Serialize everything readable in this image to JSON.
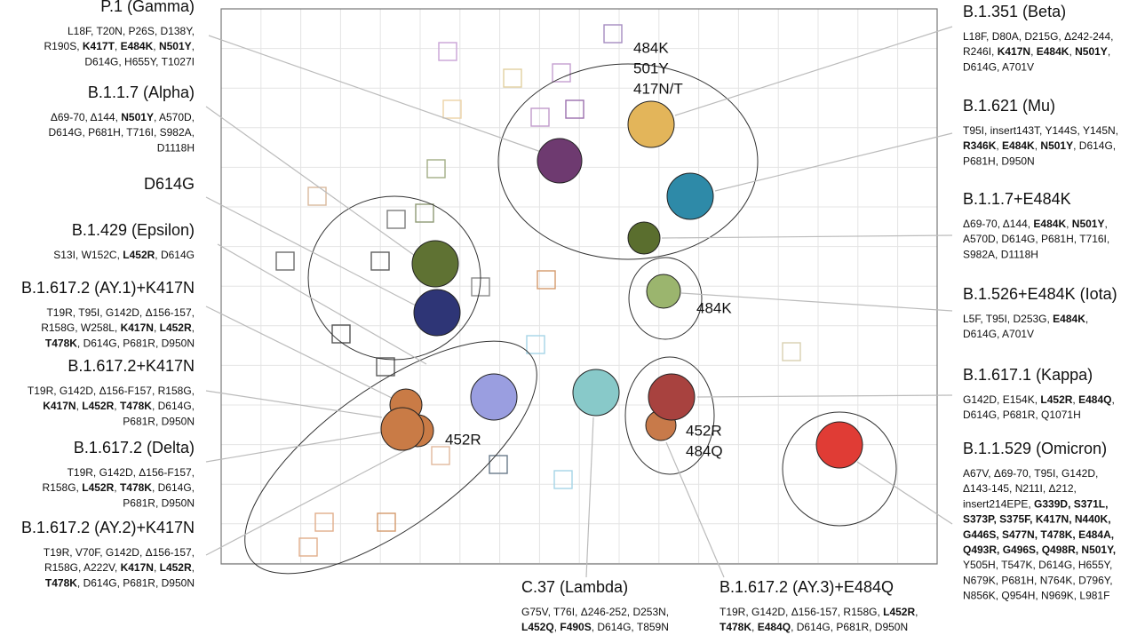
{
  "left_labels": [
    {
      "title": "P.1 (Gamma)",
      "mutations": [
        [
          "L18F, T20N, P26S, D138Y,"
        ],
        [
          "R190S, ",
          {
            "text": "K417T",
            "bold": true
          },
          ", ",
          {
            "text": "E484K",
            "bold": true
          },
          ", ",
          {
            "text": "N501Y",
            "bold": true
          },
          ","
        ],
        [
          "D614G, H655Y, T1027I"
        ]
      ]
    },
    {
      "title": "B.1.1.7 (Alpha)",
      "mutations": [
        [
          "Δ69-70, Δ144, ",
          {
            "text": "N501Y",
            "bold": true
          },
          ", A570D,"
        ],
        [
          "D614G, P681H, T716I, S982A,"
        ],
        [
          "D1118H"
        ]
      ]
    },
    {
      "title": "D614G",
      "mutations": []
    },
    {
      "title": "B.1.429 (Epsilon)",
      "mutations": [
        [
          "S13I, W152C, ",
          {
            "text": "L452R",
            "bold": true
          },
          ", D614G"
        ]
      ]
    },
    {
      "title": "B.1.617.2 (AY.1)+K417N",
      "mutations": [
        [
          "T19R, T95I, G142D, Δ156-157,"
        ],
        [
          "R158G, W258L, ",
          {
            "text": "K417N",
            "bold": true
          },
          ", ",
          {
            "text": "L452R",
            "bold": true
          },
          ","
        ],
        [
          {
            "text": "T478K",
            "bold": true
          },
          ", D614G, P681R, D950N"
        ]
      ]
    },
    {
      "title": "B.1.617.2+K417N",
      "mutations": [
        [
          "T19R, G142D, Δ156-F157, R158G,"
        ],
        [
          {
            "text": "K417N",
            "bold": true
          },
          ", ",
          {
            "text": "L452R",
            "bold": true
          },
          ", ",
          {
            "text": "T478K",
            "bold": true
          },
          ", D614G,"
        ],
        [
          "P681R, D950N"
        ]
      ]
    },
    {
      "title": "B.1.617.2 (Delta)",
      "mutations": [
        [
          "T19R, G142D, Δ156-F157,"
        ],
        [
          "R158G, ",
          {
            "text": "L452R",
            "bold": true
          },
          ", ",
          {
            "text": "T478K",
            "bold": true
          },
          ", D614G,"
        ],
        [
          "P681R, D950N"
        ]
      ]
    },
    {
      "title": "B.1.617.2 (AY.2)+K417N",
      "mutations": [
        [
          "T19R, V70F, G142D, Δ156-157,"
        ],
        [
          "R158G, A222V, ",
          {
            "text": "K417N",
            "bold": true
          },
          ", ",
          {
            "text": "L452R",
            "bold": true
          },
          ","
        ],
        [
          {
            "text": "T478K",
            "bold": true
          },
          ", D614G, P681R, D950N"
        ]
      ]
    }
  ],
  "right_labels": [
    {
      "title": "B.1.351 (Beta)",
      "mutations": [
        [
          "L18F, D80A, D215G, Δ242-244,"
        ],
        [
          "R246I, ",
          {
            "text": "K417N",
            "bold": true
          },
          ", ",
          {
            "text": "E484K",
            "bold": true
          },
          ", ",
          {
            "text": "N501Y",
            "bold": true
          },
          ","
        ],
        [
          "D614G, A701V"
        ]
      ]
    },
    {
      "title": "B.1.621 (Mu)",
      "mutations": [
        [
          "T95I, insert143T, Y144S, Y145N,"
        ],
        [
          {
            "text": "R346K",
            "bold": true
          },
          ", ",
          {
            "text": "E484K",
            "bold": true
          },
          ", ",
          {
            "text": "N501Y",
            "bold": true
          },
          ", D614G,"
        ],
        [
          "P681H, D950N"
        ]
      ]
    },
    {
      "title": "B.1.1.7+E484K",
      "mutations": [
        [
          "Δ69-70, Δ144, ",
          {
            "text": "E484K",
            "bold": true
          },
          ", ",
          {
            "text": "N501Y",
            "bold": true
          },
          ","
        ],
        [
          "A570D, D614G, P681H, T716I,"
        ],
        [
          "S982A, D1118H"
        ]
      ]
    },
    {
      "title": "B.1.526+E484K (Iota)",
      "mutations": [
        [
          "L5F, T95I, D253G, ",
          {
            "text": "E484K",
            "bold": true
          },
          ","
        ],
        [
          "D614G, A701V"
        ]
      ]
    },
    {
      "title": "B.1.617.1 (Kappa)",
      "mutations": [
        [
          "G142D, E154K, ",
          {
            "text": "L452R",
            "bold": true
          },
          ", ",
          {
            "text": "E484Q",
            "bold": true
          },
          ","
        ],
        [
          "D614G, P681R, Q1071H"
        ]
      ]
    },
    {
      "title": "B.1.1.529 (Omicron)",
      "mutations": [
        [
          "A67V, Δ69-70, T95I, G142D,"
        ],
        [
          "Δ143-145, N211I, Δ212,"
        ],
        [
          "insert214EPE, ",
          {
            "text": "G339D, S371L,",
            "bold": true
          }
        ],
        [
          {
            "text": "S373P, S375F, K417N, N440K,",
            "bold": true
          }
        ],
        [
          {
            "text": "G446S, S477N, T478K, E484A,",
            "bold": true
          }
        ],
        [
          {
            "text": "Q493R, G496S, Q498R, N501Y,",
            "bold": true
          }
        ],
        [
          "Y505H, T547K, D614G, H655Y,"
        ],
        [
          "N679K, P681H, N764K, D796Y,"
        ],
        [
          "N856K, Q954H, N969K, L981F"
        ]
      ]
    }
  ],
  "bottom_labels": [
    {
      "title": "C.37 (Lambda)",
      "mutations": [
        [
          "G75V, T76I, Δ246-252, D253N,"
        ],
        [
          {
            "text": "L452Q",
            "bold": true
          },
          ", ",
          {
            "text": "F490S",
            "bold": true
          },
          ", D614G, T859N"
        ]
      ]
    },
    {
      "title": "B.1.617.2 (AY.3)+E484Q",
      "mutations": [
        [
          "T19R, G142D, Δ156-157, R158G, ",
          {
            "text": "L452R",
            "bold": true
          },
          ","
        ],
        [
          {
            "text": "T478K",
            "bold": true
          },
          ", ",
          {
            "text": "E484Q",
            "bold": true
          },
          ", D614G, P681R, D950N"
        ]
      ]
    }
  ],
  "cluster_labels": [
    [
      "484K",
      "501Y",
      "417N/T"
    ],
    [
      "484K"
    ],
    [
      "452R"
    ],
    [
      "452R",
      "484Q"
    ]
  ]
}
